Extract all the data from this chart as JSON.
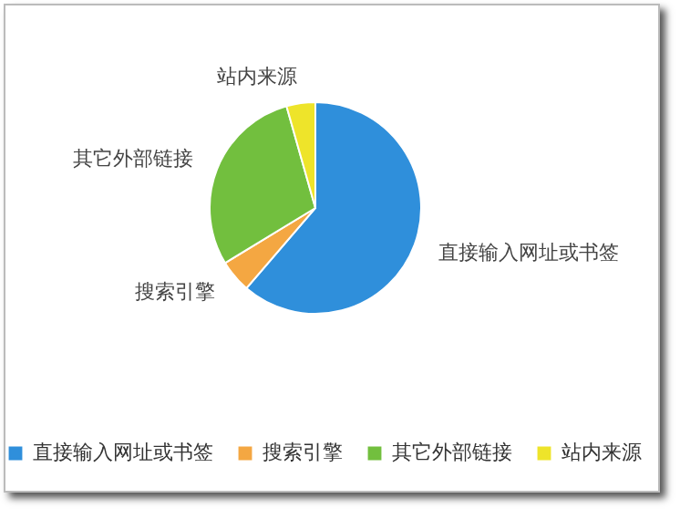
{
  "chart_data": {
    "type": "pie",
    "categories": [
      "直接输入网址或书签",
      "搜索引擎",
      "其它外部链接",
      "站内来源"
    ],
    "values": [
      61.3,
      5,
      29.3,
      4.4
    ],
    "colors": [
      "#2f8fdb",
      "#f4a742",
      "#72bf3e",
      "#eee42a"
    ],
    "legend": "bottom"
  }
}
